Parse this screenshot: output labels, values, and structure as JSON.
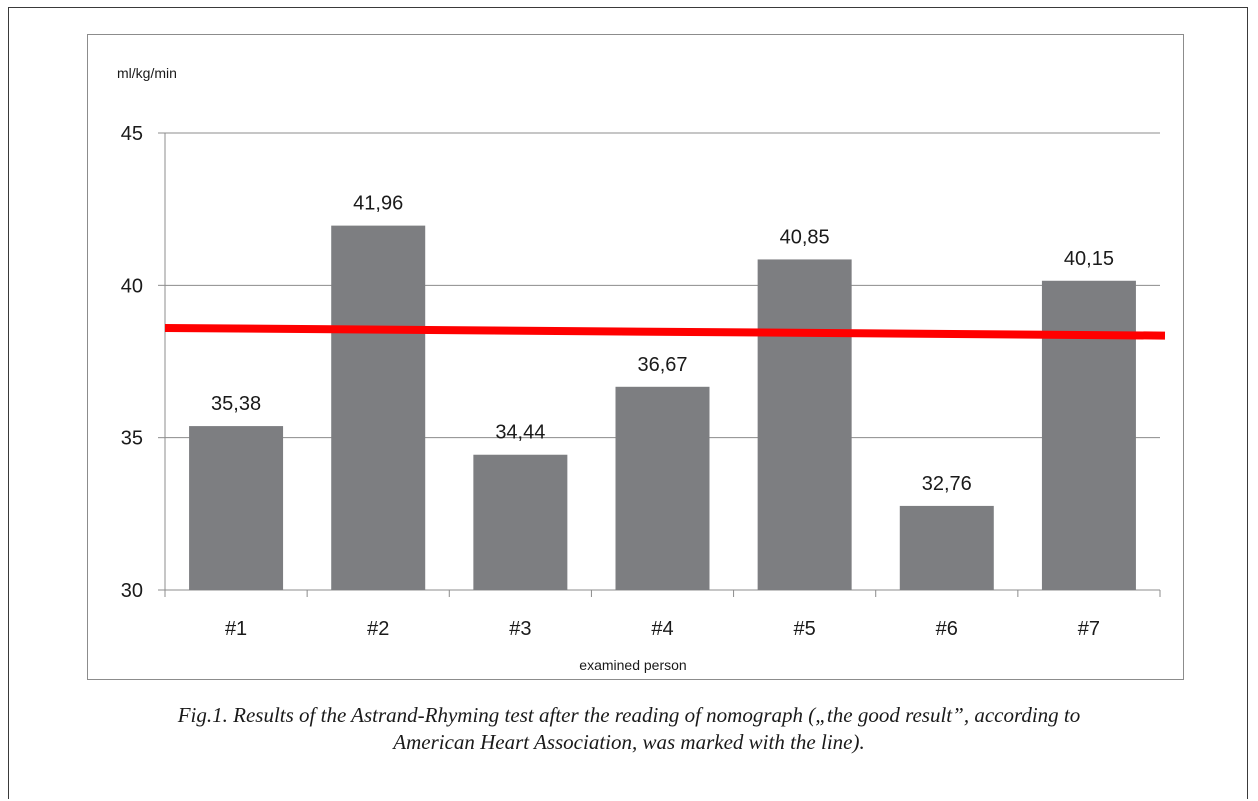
{
  "chart_data": {
    "type": "bar",
    "categories": [
      "#1",
      "#2",
      "#3",
      "#4",
      "#5",
      "#6",
      "#7"
    ],
    "values": [
      35.38,
      41.96,
      34.44,
      36.67,
      40.85,
      32.76,
      40.15
    ],
    "data_labels": [
      "35,38",
      "41,96",
      "34,44",
      "36,67",
      "40,85",
      "32,76",
      "40,15"
    ],
    "ylabel": "ml/kg/min",
    "xlabel": "examined person",
    "ylim": [
      30,
      45
    ],
    "yticks": [
      30,
      35,
      40,
      45
    ],
    "grid": true,
    "bar_color": "#7d7e81",
    "reference_line": {
      "color": "#ff0000",
      "y_start": 38.6,
      "y_end": 38.35
    }
  },
  "caption": {
    "line1": "Fig.1. Results of the Astrand-Rhyming test after the reading of nomograph („the good result”, according to",
    "line2": "American Heart Association, was marked with the line)."
  }
}
